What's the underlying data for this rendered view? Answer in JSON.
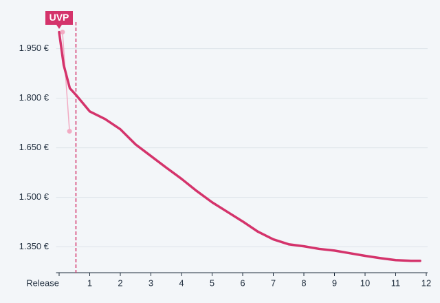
{
  "chart_data": {
    "type": "line",
    "annotation": "UVP",
    "vline": 0.55,
    "series": [
      {
        "color": "#d4336b",
        "x": [
          0,
          0.15,
          0.35,
          0.55,
          1,
          1.5,
          2,
          2.5,
          3,
          3.5,
          4,
          4.5,
          5,
          5.5,
          6,
          6.5,
          7,
          7.5,
          8,
          8.5,
          9,
          9.5,
          10,
          10.5,
          11,
          11.5,
          11.8
        ],
        "values": [
          2000,
          1900,
          1830,
          1810,
          1760,
          1737,
          1706,
          1660,
          1625,
          1590,
          1556,
          1519,
          1485,
          1456,
          1427,
          1396,
          1373,
          1358,
          1352,
          1344,
          1339,
          1331,
          1323,
          1316,
          1310,
          1308,
          1308
        ]
      },
      {
        "color": "#f2abc3",
        "x": [
          0.11,
          0.34
        ],
        "values": [
          2000,
          1700
        ]
      }
    ],
    "xlim": [
      -0.1,
      12
    ],
    "xticks": [
      {
        "value": 0,
        "label": "Release"
      },
      1,
      2,
      3,
      4,
      5,
      6,
      7,
      8,
      9,
      10,
      11,
      12
    ],
    "ylim": [
      1272,
      2036
    ],
    "yticks": [
      {
        "value": 1950,
        "label": "1.950 €"
      },
      {
        "value": 1800,
        "label": "1.800 €"
      },
      {
        "value": 1650,
        "label": "1.650 €"
      },
      {
        "value": 1500,
        "label": "1.500 €"
      },
      {
        "value": 1350,
        "label": "1.350 €"
      }
    ],
    "grid": true
  }
}
